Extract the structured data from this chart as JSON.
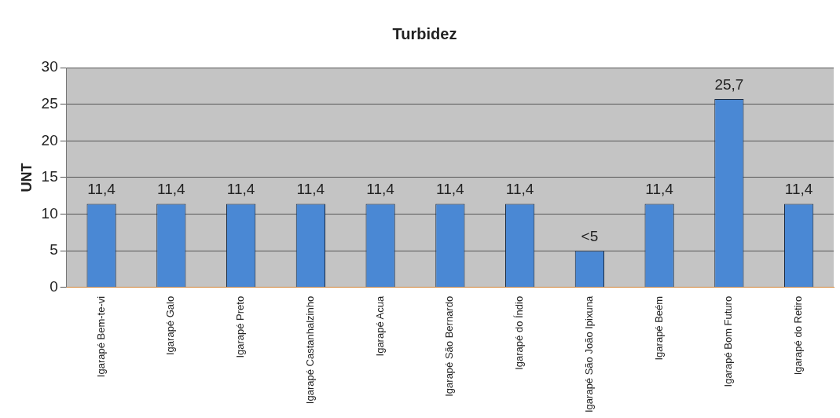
{
  "chart_data": {
    "type": "bar",
    "title": "Turbidez",
    "ylabel": "UNT",
    "categories": [
      "Igarapé Bem-te-vi",
      "Igarapé Galo",
      "Igarapé Preto",
      "Igarapé Castanhalzinho",
      "Igarapé Acua",
      "Igarapé São Bernardo",
      "Igarapé do Índio",
      "Igarapé São João Ipixuna",
      "Igarapé Beém",
      "Igarapé Bom Futuro",
      "Igarapé do Retiro"
    ],
    "values": [
      11.4,
      11.4,
      11.4,
      11.4,
      11.4,
      11.4,
      11.4,
      5,
      11.4,
      25.7,
      11.4
    ],
    "value_labels": [
      "11,4",
      "11,4",
      "11,4",
      "11,4",
      "11,4",
      "11,4",
      "11,4",
      "<5",
      "11,4",
      "25,7",
      "11,4"
    ],
    "color": "#4a88d4",
    "ylim": [
      0,
      30
    ],
    "yticks": [
      0,
      5,
      10,
      15,
      20,
      25,
      30
    ],
    "grid": "y",
    "legend": false
  }
}
